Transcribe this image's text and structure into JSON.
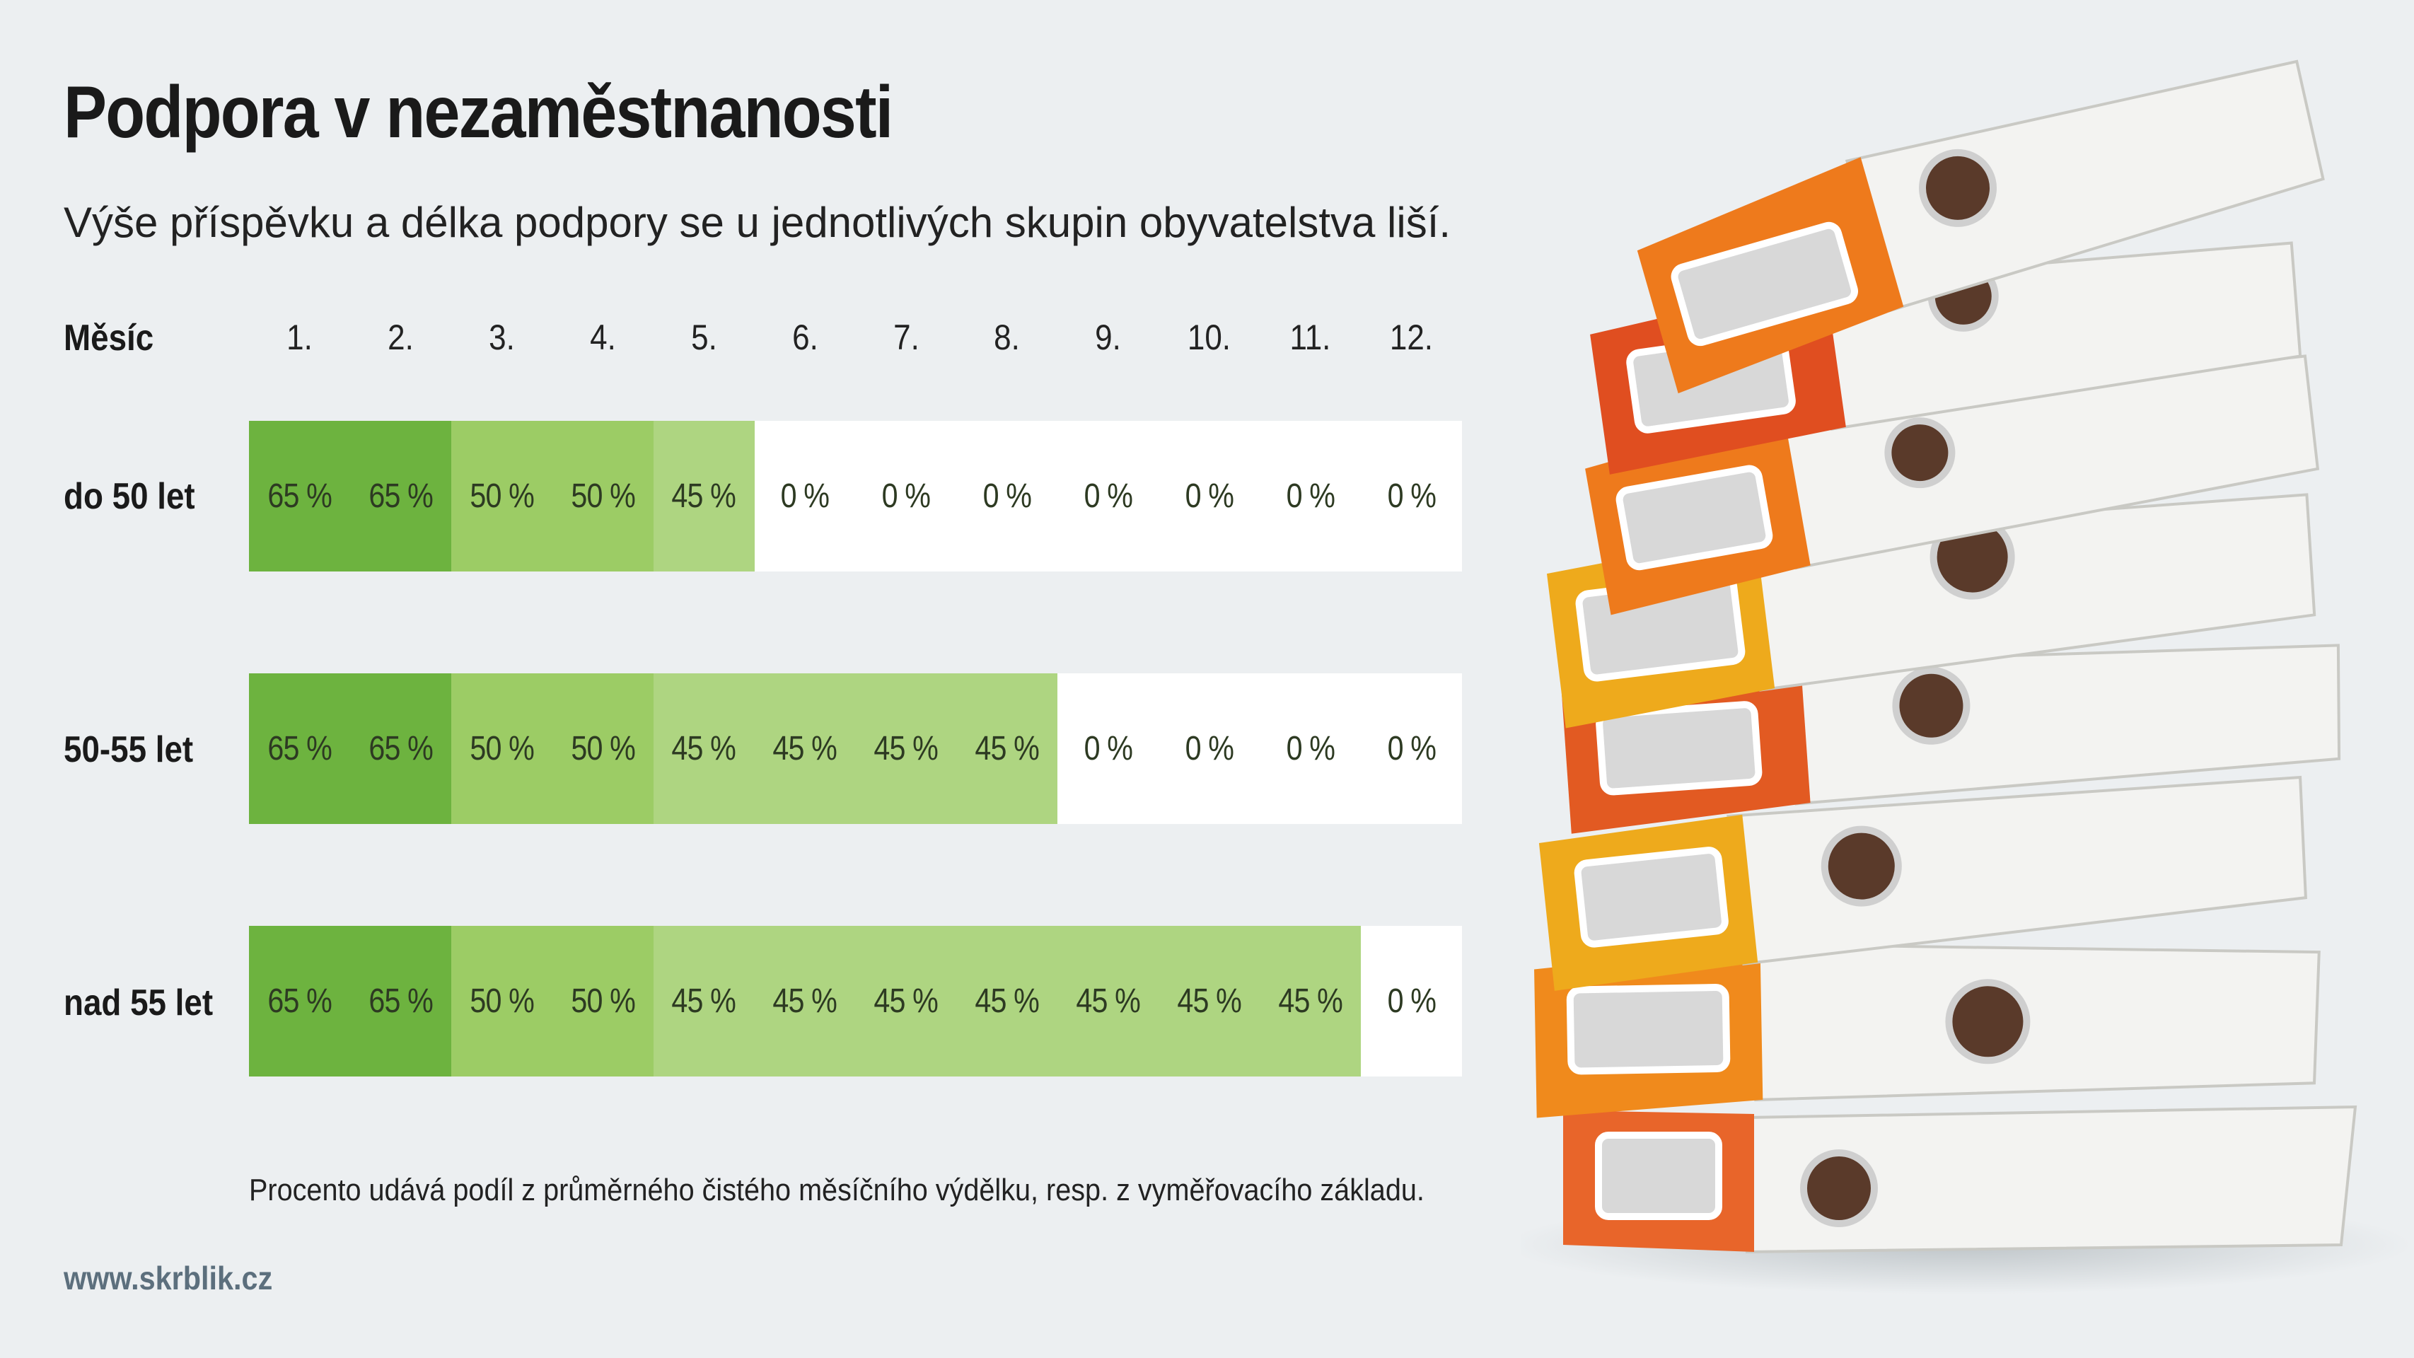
{
  "title": "Podpora v nezaměstnanosti",
  "subtitle": "Výše příspěvku a délka podpory se u jednotlivých skupin obyvatelstva liší.",
  "footnote": "Procento udává podíl z průměrného čistého měsíčního výdělku, resp. z vyměřovacího základu.",
  "website": "www.skrblik.cz",
  "colors": {
    "rate_65": "#6db33f",
    "rate_50": "#9ccc65",
    "rate_45": "#aed581",
    "rate_0": "#ffffff"
  },
  "chart_data": {
    "type": "table",
    "month_header": "Měsíc",
    "months": [
      "1.",
      "2.",
      "3.",
      "4.",
      "5.",
      "6.",
      "7.",
      "8.",
      "9.",
      "10.",
      "11.",
      "12."
    ],
    "unit": "%",
    "rows": [
      {
        "label": "do 50 let",
        "values": [
          65,
          65,
          50,
          50,
          45,
          0,
          0,
          0,
          0,
          0,
          0,
          0
        ]
      },
      {
        "label": "50-55 let",
        "values": [
          65,
          65,
          50,
          50,
          45,
          45,
          45,
          45,
          0,
          0,
          0,
          0
        ]
      },
      {
        "label": "nad 55 let",
        "values": [
          65,
          65,
          50,
          50,
          45,
          45,
          45,
          45,
          45,
          45,
          45,
          0
        ]
      }
    ]
  }
}
